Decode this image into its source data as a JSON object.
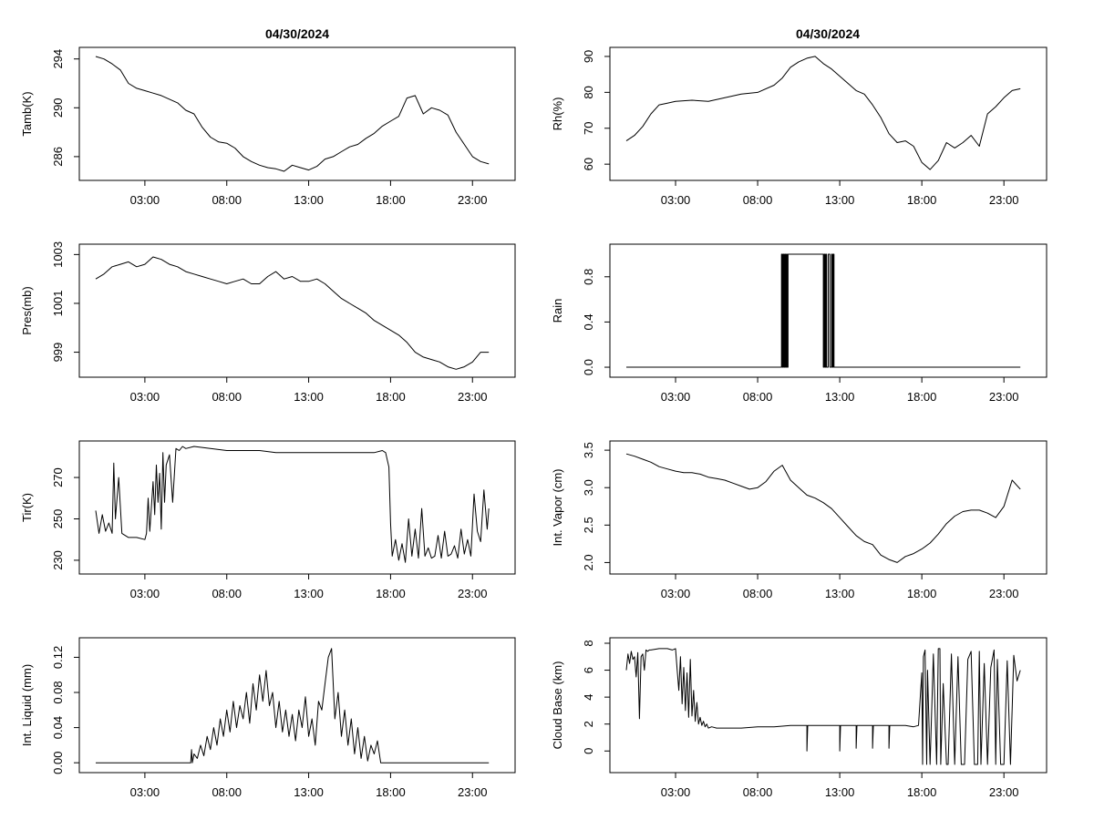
{
  "left_title": "04/30/2024",
  "right_title": "04/30/2024",
  "chart_data": [
    {
      "id": "tamb",
      "type": "line",
      "ylabel": "Tamb(K)",
      "xlim": [
        0,
        24.6
      ],
      "ylim": [
        284.5,
        294.5
      ],
      "yticks": [
        286,
        290,
        294
      ],
      "ytick_labels": [
        "286",
        "290",
        "294"
      ],
      "xticks": [
        3,
        8,
        13,
        18,
        23
      ],
      "xtick_labels": [
        "03:00",
        "08:00",
        "13:00",
        "18:00",
        "23:00"
      ],
      "x": [
        0.0,
        0.5,
        1.0,
        1.5,
        2.0,
        2.5,
        3.0,
        3.5,
        4.0,
        5.0,
        5.5,
        6.0,
        6.5,
        7.0,
        7.5,
        8.0,
        8.5,
        9.0,
        9.5,
        10.0,
        10.5,
        11.0,
        11.5,
        12.0,
        12.5,
        13.0,
        13.5,
        14.0,
        14.5,
        15.0,
        15.5,
        16.0,
        16.5,
        17.0,
        17.5,
        18.0,
        18.5,
        19.0,
        19.5,
        20.0,
        20.5,
        21.0,
        21.5,
        22.0,
        22.5,
        23.0,
        23.5,
        24.0
      ],
      "y": [
        294.2,
        294.0,
        293.6,
        293.1,
        292.0,
        291.6,
        291.4,
        291.2,
        291.0,
        290.4,
        289.8,
        289.5,
        288.4,
        287.6,
        287.2,
        287.1,
        286.7,
        286.0,
        285.6,
        285.3,
        285.1,
        285.0,
        284.8,
        285.3,
        285.1,
        284.9,
        285.2,
        285.8,
        286.0,
        286.4,
        286.8,
        287.0,
        287.5,
        287.9,
        288.5,
        288.9,
        289.3,
        290.8,
        291.0,
        289.5,
        290.0,
        289.8,
        289.4,
        288.0,
        287.0,
        286.0,
        285.6,
        285.4
      ]
    },
    {
      "id": "rh",
      "type": "line",
      "ylabel": "Rh(%)",
      "xlim": [
        0,
        24.6
      ],
      "ylim": [
        57,
        91
      ],
      "yticks": [
        60,
        70,
        80,
        90
      ],
      "ytick_labels": [
        "60",
        "70",
        "80",
        "90"
      ],
      "xticks": [
        3,
        8,
        13,
        18,
        23
      ],
      "xtick_labels": [
        "03:00",
        "08:00",
        "13:00",
        "18:00",
        "23:00"
      ],
      "x": [
        0.0,
        0.5,
        1.0,
        1.5,
        2.0,
        2.5,
        3.0,
        4.0,
        5.0,
        6.0,
        7.0,
        8.0,
        9.0,
        9.5,
        10.0,
        10.5,
        11.0,
        11.5,
        12.0,
        12.5,
        13.0,
        13.5,
        14.0,
        14.5,
        15.0,
        15.5,
        16.0,
        16.5,
        17.0,
        17.5,
        18.0,
        18.5,
        19.0,
        19.5,
        20.0,
        20.5,
        21.0,
        21.5,
        22.0,
        22.5,
        23.0,
        23.5,
        24.0
      ],
      "y": [
        66.5,
        68.0,
        70.5,
        74.0,
        76.5,
        77.0,
        77.5,
        77.8,
        77.5,
        78.5,
        79.5,
        80.0,
        82.0,
        84.0,
        87.0,
        88.5,
        89.5,
        90.0,
        88.0,
        86.5,
        84.5,
        82.5,
        80.5,
        79.5,
        76.5,
        73.0,
        68.5,
        66.0,
        66.5,
        65.0,
        60.5,
        58.5,
        61.0,
        66.0,
        64.5,
        66.0,
        68.0,
        65.0,
        74.0,
        76.0,
        78.5,
        80.5,
        81.0
      ]
    },
    {
      "id": "pres",
      "type": "line",
      "ylabel": "Pres(mb)",
      "xlim": [
        0,
        24.6
      ],
      "ylim": [
        998.2,
        1003.2
      ],
      "yticks": [
        999,
        1001,
        1003
      ],
      "ytick_labels": [
        "999",
        "1001",
        "1003"
      ],
      "xticks": [
        3,
        8,
        13,
        18,
        23
      ],
      "xtick_labels": [
        "03:00",
        "08:00",
        "13:00",
        "18:00",
        "23:00"
      ],
      "x": [
        0.0,
        0.5,
        1.0,
        1.5,
        2.0,
        2.5,
        3.0,
        3.5,
        4.0,
        4.5,
        5.0,
        5.5,
        6.0,
        6.5,
        7.0,
        7.5,
        8.0,
        8.5,
        9.0,
        9.5,
        10.0,
        10.5,
        11.0,
        11.5,
        12.0,
        12.5,
        13.0,
        13.5,
        14.0,
        14.5,
        15.0,
        15.5,
        16.0,
        16.5,
        17.0,
        17.5,
        18.0,
        18.5,
        19.0,
        19.5,
        20.0,
        20.5,
        21.0,
        21.5,
        22.0,
        22.5,
        23.0,
        23.5,
        24.0
      ],
      "y": [
        1002.0,
        1002.2,
        1002.5,
        1002.6,
        1002.7,
        1002.5,
        1002.6,
        1002.9,
        1002.8,
        1002.6,
        1002.5,
        1002.3,
        1002.2,
        1002.1,
        1002.0,
        1001.9,
        1001.8,
        1001.9,
        1002.0,
        1001.8,
        1001.8,
        1002.1,
        1002.3,
        1002.0,
        1002.1,
        1001.9,
        1001.9,
        1002.0,
        1001.8,
        1001.5,
        1001.2,
        1001.0,
        1000.8,
        1000.6,
        1000.3,
        1000.1,
        999.9,
        999.7,
        999.4,
        999.0,
        998.8,
        998.7,
        998.6,
        998.4,
        998.3,
        998.4,
        998.6,
        999.0,
        999.0
      ]
    },
    {
      "id": "rain",
      "type": "line",
      "ylabel": "Rain",
      "xlim": [
        0,
        24.6
      ],
      "ylim": [
        -0.04,
        1.04
      ],
      "yticks": [
        0.0,
        0.4,
        0.8
      ],
      "ytick_labels": [
        "0.0",
        "0.4",
        "0.8"
      ],
      "xticks": [
        3,
        8,
        13,
        18,
        23
      ],
      "xtick_labels": [
        "03:00",
        "08:00",
        "13:00",
        "18:00",
        "23:00"
      ],
      "x": [
        0.0,
        9.45,
        9.45,
        9.5,
        9.5,
        9.55,
        9.55,
        9.6,
        9.6,
        9.65,
        9.65,
        9.7,
        9.7,
        9.75,
        9.75,
        9.8,
        9.8,
        9.85,
        9.85,
        12.0,
        12.0,
        12.05,
        12.05,
        12.1,
        12.1,
        12.15,
        12.15,
        12.2,
        12.2,
        12.3,
        12.3,
        12.4,
        12.4,
        12.5,
        12.5,
        12.55,
        12.55,
        12.6,
        12.6,
        12.65,
        12.65,
        24.0
      ],
      "y": [
        0,
        0,
        1,
        1,
        0,
        0,
        1,
        1,
        0,
        0,
        1,
        1,
        0,
        0,
        1,
        1,
        0,
        0,
        1,
        1,
        0,
        0,
        1,
        1,
        0,
        0,
        1,
        1,
        0,
        0,
        1,
        1,
        0,
        0,
        1,
        1,
        0,
        0,
        1,
        1,
        0,
        0
      ]
    },
    {
      "id": "tir",
      "type": "line",
      "ylabel": "Tir(K)",
      "xlim": [
        0,
        24.6
      ],
      "ylim": [
        226,
        285
      ],
      "yticks": [
        230,
        250,
        270
      ],
      "ytick_labels": [
        "230",
        "250",
        "270"
      ],
      "xticks": [
        3,
        8,
        13,
        18,
        23
      ],
      "xtick_labels": [
        "03:00",
        "08:00",
        "13:00",
        "18:00",
        "23:00"
      ],
      "x": [
        0.0,
        0.2,
        0.4,
        0.6,
        0.8,
        1.0,
        1.1,
        1.2,
        1.4,
        1.6,
        1.8,
        2.0,
        2.5,
        3.0,
        3.1,
        3.2,
        3.3,
        3.5,
        3.6,
        3.7,
        3.8,
        3.9,
        4.0,
        4.1,
        4.2,
        4.3,
        4.5,
        4.7,
        4.9,
        5.1,
        5.3,
        5.5,
        6.0,
        7.0,
        8.0,
        9.0,
        10.0,
        11.0,
        12.0,
        13.0,
        14.0,
        15.0,
        16.0,
        17.0,
        17.5,
        17.7,
        17.9,
        18.0,
        18.1,
        18.3,
        18.5,
        18.7,
        18.9,
        19.1,
        19.3,
        19.5,
        19.7,
        19.9,
        20.1,
        20.3,
        20.5,
        20.7,
        20.9,
        21.1,
        21.3,
        21.5,
        21.7,
        21.9,
        22.1,
        22.3,
        22.5,
        22.7,
        22.9,
        23.1,
        23.3,
        23.5,
        23.7,
        23.9,
        24.0
      ],
      "y": [
        254,
        243,
        252,
        244,
        248,
        243,
        277,
        250,
        270,
        243,
        242,
        241,
        241,
        240,
        243,
        260,
        244,
        268,
        252,
        276,
        258,
        272,
        245,
        282,
        258,
        276,
        281,
        258,
        284,
        283,
        285,
        284,
        285,
        284,
        283,
        283,
        283,
        282,
        282,
        282,
        282,
        282,
        282,
        282,
        283,
        282,
        275,
        248,
        232,
        240,
        230,
        238,
        229,
        250,
        232,
        245,
        231,
        255,
        232,
        236,
        231,
        232,
        242,
        231,
        244,
        232,
        233,
        237,
        231,
        245,
        233,
        240,
        232,
        262,
        244,
        239,
        264,
        245,
        255
      ]
    },
    {
      "id": "vapor",
      "type": "line",
      "ylabel": "Int. Vapor (cm)",
      "xlim": [
        0,
        24.6
      ],
      "ylim": [
        1.92,
        3.55
      ],
      "yticks": [
        2.0,
        2.5,
        3.0,
        3.5
      ],
      "ytick_labels": [
        "2.0",
        "2.5",
        "3.0",
        "3.5"
      ],
      "xticks": [
        3,
        8,
        13,
        18,
        23
      ],
      "xtick_labels": [
        "03:00",
        "08:00",
        "13:00",
        "18:00",
        "23:00"
      ],
      "x": [
        0.0,
        0.5,
        1.0,
        1.5,
        2.0,
        2.5,
        3.0,
        3.5,
        4.0,
        4.5,
        5.0,
        5.5,
        6.0,
        6.5,
        7.0,
        7.5,
        8.0,
        8.5,
        9.0,
        9.5,
        10.0,
        10.5,
        11.0,
        11.5,
        12.0,
        12.5,
        13.0,
        13.5,
        14.0,
        14.5,
        15.0,
        15.5,
        16.0,
        16.5,
        17.0,
        17.5,
        18.0,
        18.5,
        19.0,
        19.5,
        20.0,
        20.5,
        21.0,
        21.5,
        22.0,
        22.5,
        23.0,
        23.5,
        24.0
      ],
      "y": [
        3.45,
        3.42,
        3.38,
        3.34,
        3.28,
        3.25,
        3.22,
        3.2,
        3.2,
        3.18,
        3.14,
        3.12,
        3.1,
        3.06,
        3.02,
        2.98,
        3.0,
        3.08,
        3.22,
        3.3,
        3.1,
        3.0,
        2.9,
        2.86,
        2.8,
        2.72,
        2.6,
        2.48,
        2.36,
        2.28,
        2.24,
        2.1,
        2.04,
        2.0,
        2.08,
        2.12,
        2.18,
        2.26,
        2.38,
        2.52,
        2.62,
        2.68,
        2.7,
        2.7,
        2.66,
        2.6,
        2.75,
        3.1,
        2.98
      ]
    },
    {
      "id": "liquid",
      "type": "line",
      "ylabel": "Int. Liquid (mm)",
      "xlim": [
        0,
        24.6
      ],
      "ylim": [
        -0.005,
        0.136
      ],
      "yticks": [
        0.0,
        0.04,
        0.08,
        0.12
      ],
      "ytick_labels": [
        "0.00",
        "0.04",
        "0.08",
        "0.12"
      ],
      "xticks": [
        3,
        8,
        13,
        18,
        23
      ],
      "xtick_labels": [
        "03:00",
        "08:00",
        "13:00",
        "18:00",
        "23:00"
      ],
      "x": [
        0.0,
        5.8,
        5.85,
        5.9,
        6.0,
        6.2,
        6.4,
        6.6,
        6.8,
        7.0,
        7.2,
        7.4,
        7.6,
        7.8,
        8.0,
        8.2,
        8.4,
        8.6,
        8.8,
        9.0,
        9.2,
        9.4,
        9.6,
        9.8,
        10.0,
        10.2,
        10.4,
        10.6,
        10.8,
        11.0,
        11.2,
        11.4,
        11.6,
        11.8,
        12.0,
        12.2,
        12.4,
        12.6,
        12.8,
        13.0,
        13.2,
        13.4,
        13.6,
        13.8,
        14.0,
        14.2,
        14.4,
        14.6,
        14.8,
        15.0,
        15.2,
        15.4,
        15.6,
        15.8,
        16.0,
        16.2,
        16.4,
        16.6,
        16.8,
        17.0,
        17.2,
        17.4,
        17.5,
        24.0
      ],
      "y": [
        0,
        0,
        0.015,
        0.0,
        0.01,
        0.005,
        0.02,
        0.008,
        0.03,
        0.015,
        0.04,
        0.02,
        0.05,
        0.03,
        0.06,
        0.035,
        0.07,
        0.04,
        0.065,
        0.05,
        0.08,
        0.045,
        0.09,
        0.06,
        0.1,
        0.07,
        0.105,
        0.065,
        0.08,
        0.04,
        0.07,
        0.035,
        0.06,
        0.03,
        0.055,
        0.025,
        0.06,
        0.04,
        0.075,
        0.03,
        0.05,
        0.02,
        0.07,
        0.06,
        0.09,
        0.12,
        0.13,
        0.05,
        0.08,
        0.03,
        0.06,
        0.02,
        0.05,
        0.01,
        0.04,
        0.005,
        0.03,
        0.002,
        0.02,
        0.01,
        0.025,
        0.0,
        0.0,
        0.0
      ]
    },
    {
      "id": "cloud",
      "type": "line",
      "ylabel": "Cloud Base (km)",
      "xlim": [
        0,
        24.6
      ],
      "ylim": [
        -1.2,
        8.0
      ],
      "yticks": [
        0,
        2,
        4,
        6,
        8
      ],
      "ytick_labels": [
        "0",
        "2",
        "4",
        "6",
        "8"
      ],
      "xticks": [
        3,
        8,
        13,
        18,
        23
      ],
      "xtick_labels": [
        "03:00",
        "08:00",
        "13:00",
        "18:00",
        "23:00"
      ],
      "x": [
        0.0,
        0.1,
        0.2,
        0.3,
        0.4,
        0.5,
        0.6,
        0.7,
        0.8,
        0.9,
        1.0,
        1.1,
        1.2,
        1.3,
        1.4,
        1.5,
        2.0,
        2.5,
        2.8,
        3.0,
        3.1,
        3.2,
        3.3,
        3.4,
        3.5,
        3.6,
        3.7,
        3.8,
        3.9,
        4.0,
        4.1,
        4.2,
        4.3,
        4.4,
        4.5,
        4.6,
        4.7,
        4.8,
        4.9,
        5.0,
        5.2,
        5.5,
        6.0,
        7.0,
        8.0,
        9.0,
        10.0,
        11.0,
        11.0,
        11.05,
        12.0,
        13.0,
        13.0,
        13.05,
        14.0,
        14.0,
        14.05,
        15.0,
        15.0,
        15.05,
        16.0,
        16.0,
        16.05,
        17.0,
        17.5,
        17.8,
        18.0,
        18.05,
        18.1,
        18.2,
        18.3,
        18.35,
        18.5,
        18.7,
        18.9,
        19.0,
        19.1,
        19.15,
        19.3,
        19.5,
        19.6,
        19.8,
        20.0,
        20.2,
        20.4,
        20.6,
        20.8,
        21.0,
        21.2,
        21.4,
        21.5,
        21.6,
        21.8,
        22.0,
        22.2,
        22.4,
        22.5,
        22.6,
        22.8,
        23.0,
        23.2,
        23.4,
        23.6,
        23.8,
        24.0
      ],
      "y": [
        6.0,
        7.2,
        6.5,
        7.4,
        6.8,
        7.0,
        5.5,
        7.3,
        2.4,
        7.0,
        7.2,
        6.0,
        7.5,
        7.4,
        7.5,
        7.5,
        7.6,
        7.6,
        7.5,
        7.6,
        6.0,
        4.5,
        7.0,
        3.5,
        6.2,
        3.0,
        5.8,
        2.5,
        6.8,
        2.6,
        4.5,
        2.2,
        3.6,
        2.0,
        2.5,
        1.9,
        2.2,
        1.8,
        2.0,
        1.7,
        1.8,
        1.7,
        1.7,
        1.7,
        1.8,
        1.8,
        1.9,
        1.9,
        0.0,
        1.9,
        1.9,
        1.9,
        0.0,
        1.9,
        1.9,
        0.2,
        1.9,
        1.9,
        0.2,
        1.9,
        1.9,
        0.2,
        1.9,
        1.9,
        1.8,
        1.9,
        5.8,
        -1.0,
        7.0,
        7.5,
        -1.0,
        6.0,
        -1.0,
        7.2,
        -1.0,
        7.6,
        7.6,
        -1.0,
        5.0,
        -1.0,
        -1.0,
        7.2,
        -1.0,
        7.0,
        -1.0,
        -1.0,
        6.8,
        7.4,
        -1.0,
        -1.0,
        7.4,
        -1.0,
        6.5,
        -1.0,
        6.2,
        7.5,
        -1.0,
        6.8,
        -1.0,
        -1.0,
        6.7,
        -1.0,
        7.1,
        5.2,
        6.0
      ]
    }
  ]
}
